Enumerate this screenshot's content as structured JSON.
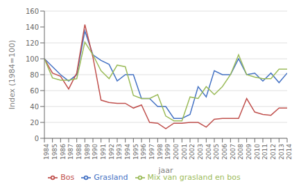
{
  "chart_data": {
    "type": "line",
    "x_label": "jaar",
    "y_label": "Index (1984=100)",
    "x": [
      1984,
      1985,
      1986,
      1987,
      1988,
      1989,
      1990,
      1991,
      1992,
      1993,
      1994,
      1995,
      1996,
      1997,
      1998,
      1999,
      2000,
      2001,
      2002,
      2003,
      2004,
      2005,
      2006,
      2007,
      2008,
      2009,
      2010,
      2011,
      2012,
      2013,
      2014
    ],
    "series": [
      {
        "name": "Grasland",
        "color": "#4472C4",
        "values": [
          100,
          90,
          80,
          72,
          80,
          135,
          105,
          98,
          93,
          72,
          80,
          80,
          50,
          50,
          40,
          40,
          25,
          25,
          30,
          65,
          52,
          85,
          80,
          80,
          100,
          80,
          82,
          72,
          82,
          70,
          82
        ]
      },
      {
        "name": "Bos",
        "color": "#C0504D",
        "values": [
          100,
          82,
          78,
          62,
          82,
          143,
          102,
          48,
          45,
          44,
          44,
          38,
          42,
          20,
          19,
          12,
          19,
          19,
          20,
          20,
          14,
          24,
          25,
          25,
          25,
          50,
          33,
          30,
          29,
          38,
          38
        ]
      },
      {
        "name": "Mix van grasland en bos",
        "color": "#9BBB59",
        "values": [
          100,
          76,
          73,
          73,
          75,
          121,
          105,
          85,
          75,
          92,
          90,
          54,
          50,
          50,
          55,
          28,
          22,
          22,
          52,
          50,
          65,
          55,
          65,
          80,
          105,
          80,
          77,
          75,
          75,
          87,
          87
        ]
      }
    ],
    "xlim": [
      1984,
      2014
    ],
    "xticks": [
      1984,
      1985,
      1986,
      1987,
      1988,
      1989,
      1990,
      1991,
      1992,
      1993,
      1994,
      1995,
      1996,
      1997,
      1998,
      1999,
      2000,
      2001,
      2002,
      2003,
      2004,
      2005,
      2006,
      2007,
      2008,
      2009,
      2010,
      2011,
      2012,
      2013,
      2014
    ],
    "ylim": [
      0,
      160
    ],
    "yticks": [
      0,
      20,
      40,
      60,
      80,
      100,
      120,
      140,
      160
    ],
    "grid": true,
    "legend": "bottom"
  }
}
